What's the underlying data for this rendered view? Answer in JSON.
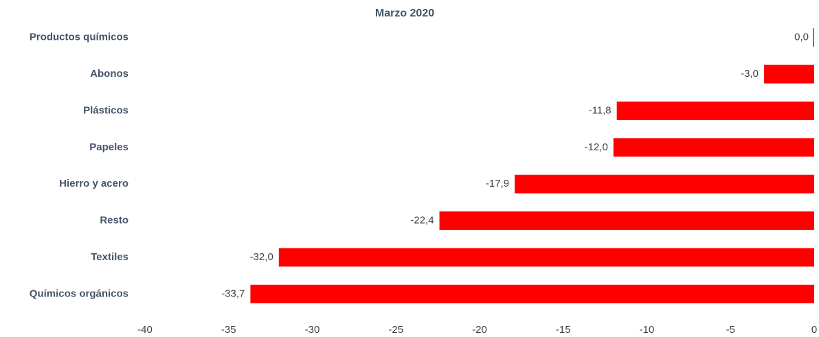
{
  "chart_data": {
    "type": "bar",
    "orientation": "horizontal",
    "title": "Marzo 2020",
    "categories": [
      "Productos químicos",
      "Abonos",
      "Plásticos",
      "Papeles",
      "Hierro y acero",
      "Resto",
      "Textiles",
      "Químicos orgánicos"
    ],
    "values": [
      0.0,
      -3.0,
      -11.8,
      -12.0,
      -17.9,
      -22.4,
      -32.0,
      -33.7
    ],
    "value_labels": [
      "0,0",
      "-3,0",
      "-11,8",
      "-12,0",
      "-17,9",
      "-22,4",
      "-32,0",
      "-33,7"
    ],
    "color": "#ff0000",
    "xlim": [
      -40,
      0
    ],
    "xticks": [
      -40,
      -35,
      -30,
      -25,
      -20,
      -15,
      -10,
      -5,
      0
    ],
    "grid": false
  }
}
